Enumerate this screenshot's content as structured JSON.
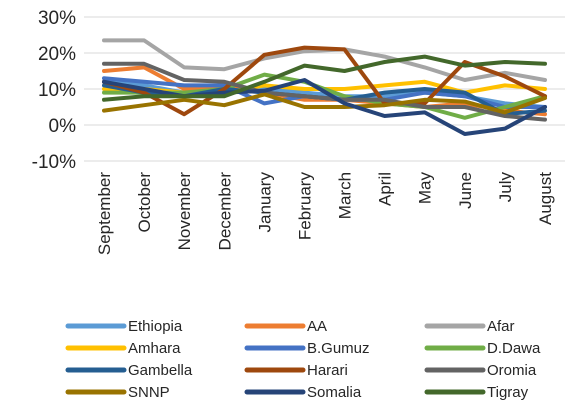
{
  "chart_data": {
    "type": "line",
    "title": "",
    "xlabel": "",
    "ylabel": "",
    "ylim": [
      -10,
      30
    ],
    "y_ticks": [
      "30%",
      "20%",
      "10%",
      "0%",
      "-10%"
    ],
    "y_tick_values": [
      30,
      20,
      10,
      0,
      -10
    ],
    "grid": true,
    "legend_position": "bottom",
    "categories": [
      "September",
      "October",
      "November",
      "December",
      "January",
      "February",
      "March",
      "April",
      "May",
      "June",
      "July",
      "August"
    ],
    "series": [
      {
        "name": "Ethiopia",
        "color": "#5B9BD5",
        "values": [
          12,
          11,
          9,
          10,
          10,
          9,
          8,
          8,
          9,
          8,
          6,
          5
        ]
      },
      {
        "name": "AA",
        "color": "#ED7D31",
        "values": [
          15,
          16,
          10,
          11,
          9,
          7,
          7,
          6,
          5,
          6,
          4,
          3
        ]
      },
      {
        "name": "Afar",
        "color": "#A5A5A5",
        "values": [
          23.5,
          23.5,
          16,
          15.5,
          18.5,
          20.5,
          21,
          19,
          16,
          12.5,
          14.5,
          12.5
        ]
      },
      {
        "name": "Amhara",
        "color": "#FFC000",
        "values": [
          10,
          10,
          9,
          9,
          11,
          10,
          10,
          11,
          12,
          9,
          11,
          10
        ]
      },
      {
        "name": "B.Gumuz",
        "color": "#4472C4",
        "values": [
          13,
          12,
          11,
          11,
          6,
          8,
          7,
          7,
          9,
          8,
          5,
          5
        ]
      },
      {
        "name": "D.Dawa",
        "color": "#70AD47",
        "values": [
          9,
          9,
          9,
          10,
          14,
          12,
          8,
          6,
          5,
          2,
          5,
          8
        ]
      },
      {
        "name": "Gambella",
        "color": "#255E91",
        "values": [
          11,
          9,
          8,
          10,
          9,
          8,
          7,
          9,
          10,
          9,
          3,
          4
        ]
      },
      {
        "name": "Harari",
        "color": "#9E480E",
        "values": [
          12,
          9,
          3,
          10,
          19.5,
          21.5,
          21,
          6,
          6,
          17.5,
          13.5,
          8
        ]
      },
      {
        "name": "Oromia",
        "color": "#636363",
        "values": [
          17,
          17,
          12.5,
          12,
          9,
          8,
          7,
          7,
          5,
          5,
          2.5,
          1.5
        ]
      },
      {
        "name": "SNNP",
        "color": "#997300",
        "values": [
          4,
          5.5,
          7,
          5.5,
          8.5,
          5,
          5,
          5.5,
          7,
          6.5,
          3.5,
          7.5
        ]
      },
      {
        "name": "Somalia",
        "color": "#264478",
        "values": [
          12,
          10,
          8,
          9,
          9.5,
          12.5,
          6,
          2.5,
          3.5,
          -2.5,
          -1,
          5
        ]
      },
      {
        "name": "Tigray",
        "color": "#43682B",
        "values": [
          7,
          8,
          8,
          8,
          12,
          16.5,
          15,
          17.5,
          19,
          16.5,
          17.5,
          17
        ]
      }
    ]
  }
}
